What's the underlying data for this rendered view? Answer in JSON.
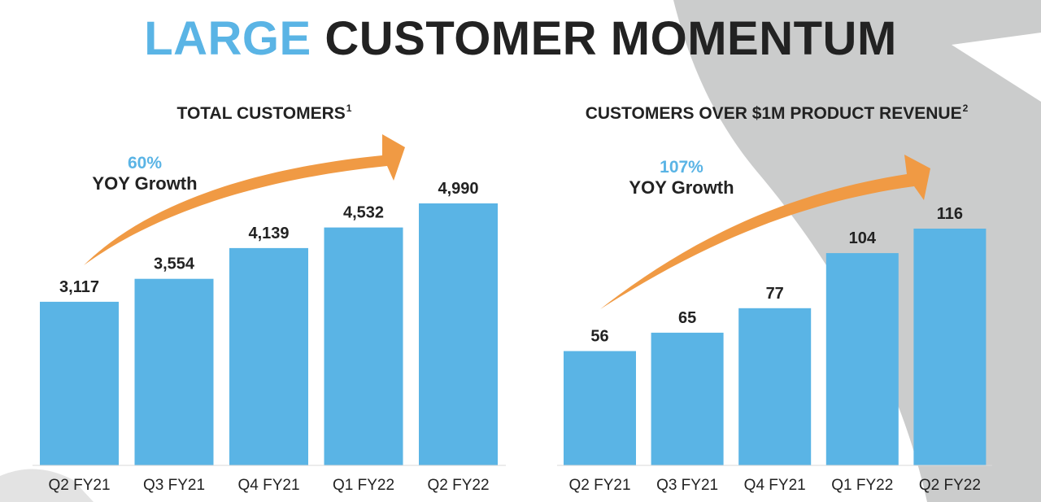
{
  "title": {
    "accent": "LARGE",
    "rest": "CUSTOMER MOMENTUM"
  },
  "colors": {
    "accent": "#5ab4e5",
    "bar": "#5ab4e5",
    "arrow": "#f09a44",
    "background_shape": "#cbcccc",
    "text": "#222222"
  },
  "chart_data": [
    {
      "type": "bar",
      "title": "TOTAL CUSTOMERS",
      "title_sup": "1",
      "growth_pct": "60%",
      "growth_label": "YOY Growth",
      "categories": [
        "Q2 FY21",
        "Q3 FY21",
        "Q4 FY21",
        "Q1 FY22",
        "Q2 FY22"
      ],
      "values": [
        3117,
        3554,
        4139,
        4532,
        4990
      ],
      "value_labels": [
        "3,117",
        "3,554",
        "4,139",
        "4,532",
        "4,990"
      ],
      "ylim": [
        0,
        5500
      ],
      "grid": false,
      "legend": "none"
    },
    {
      "type": "bar",
      "title": "CUSTOMERS OVER $1M PRODUCT REVENUE",
      "title_sup": "2",
      "growth_pct": "107%",
      "growth_label": "YOY Growth",
      "categories": [
        "Q2 FY21",
        "Q3 FY21",
        "Q4 FY21",
        "Q1 FY22",
        "Q2 FY22"
      ],
      "values": [
        56,
        65,
        77,
        104,
        116
      ],
      "value_labels": [
        "56",
        "65",
        "77",
        "104",
        "116"
      ],
      "ylim": [
        0,
        125
      ],
      "grid": false,
      "legend": "none"
    }
  ]
}
